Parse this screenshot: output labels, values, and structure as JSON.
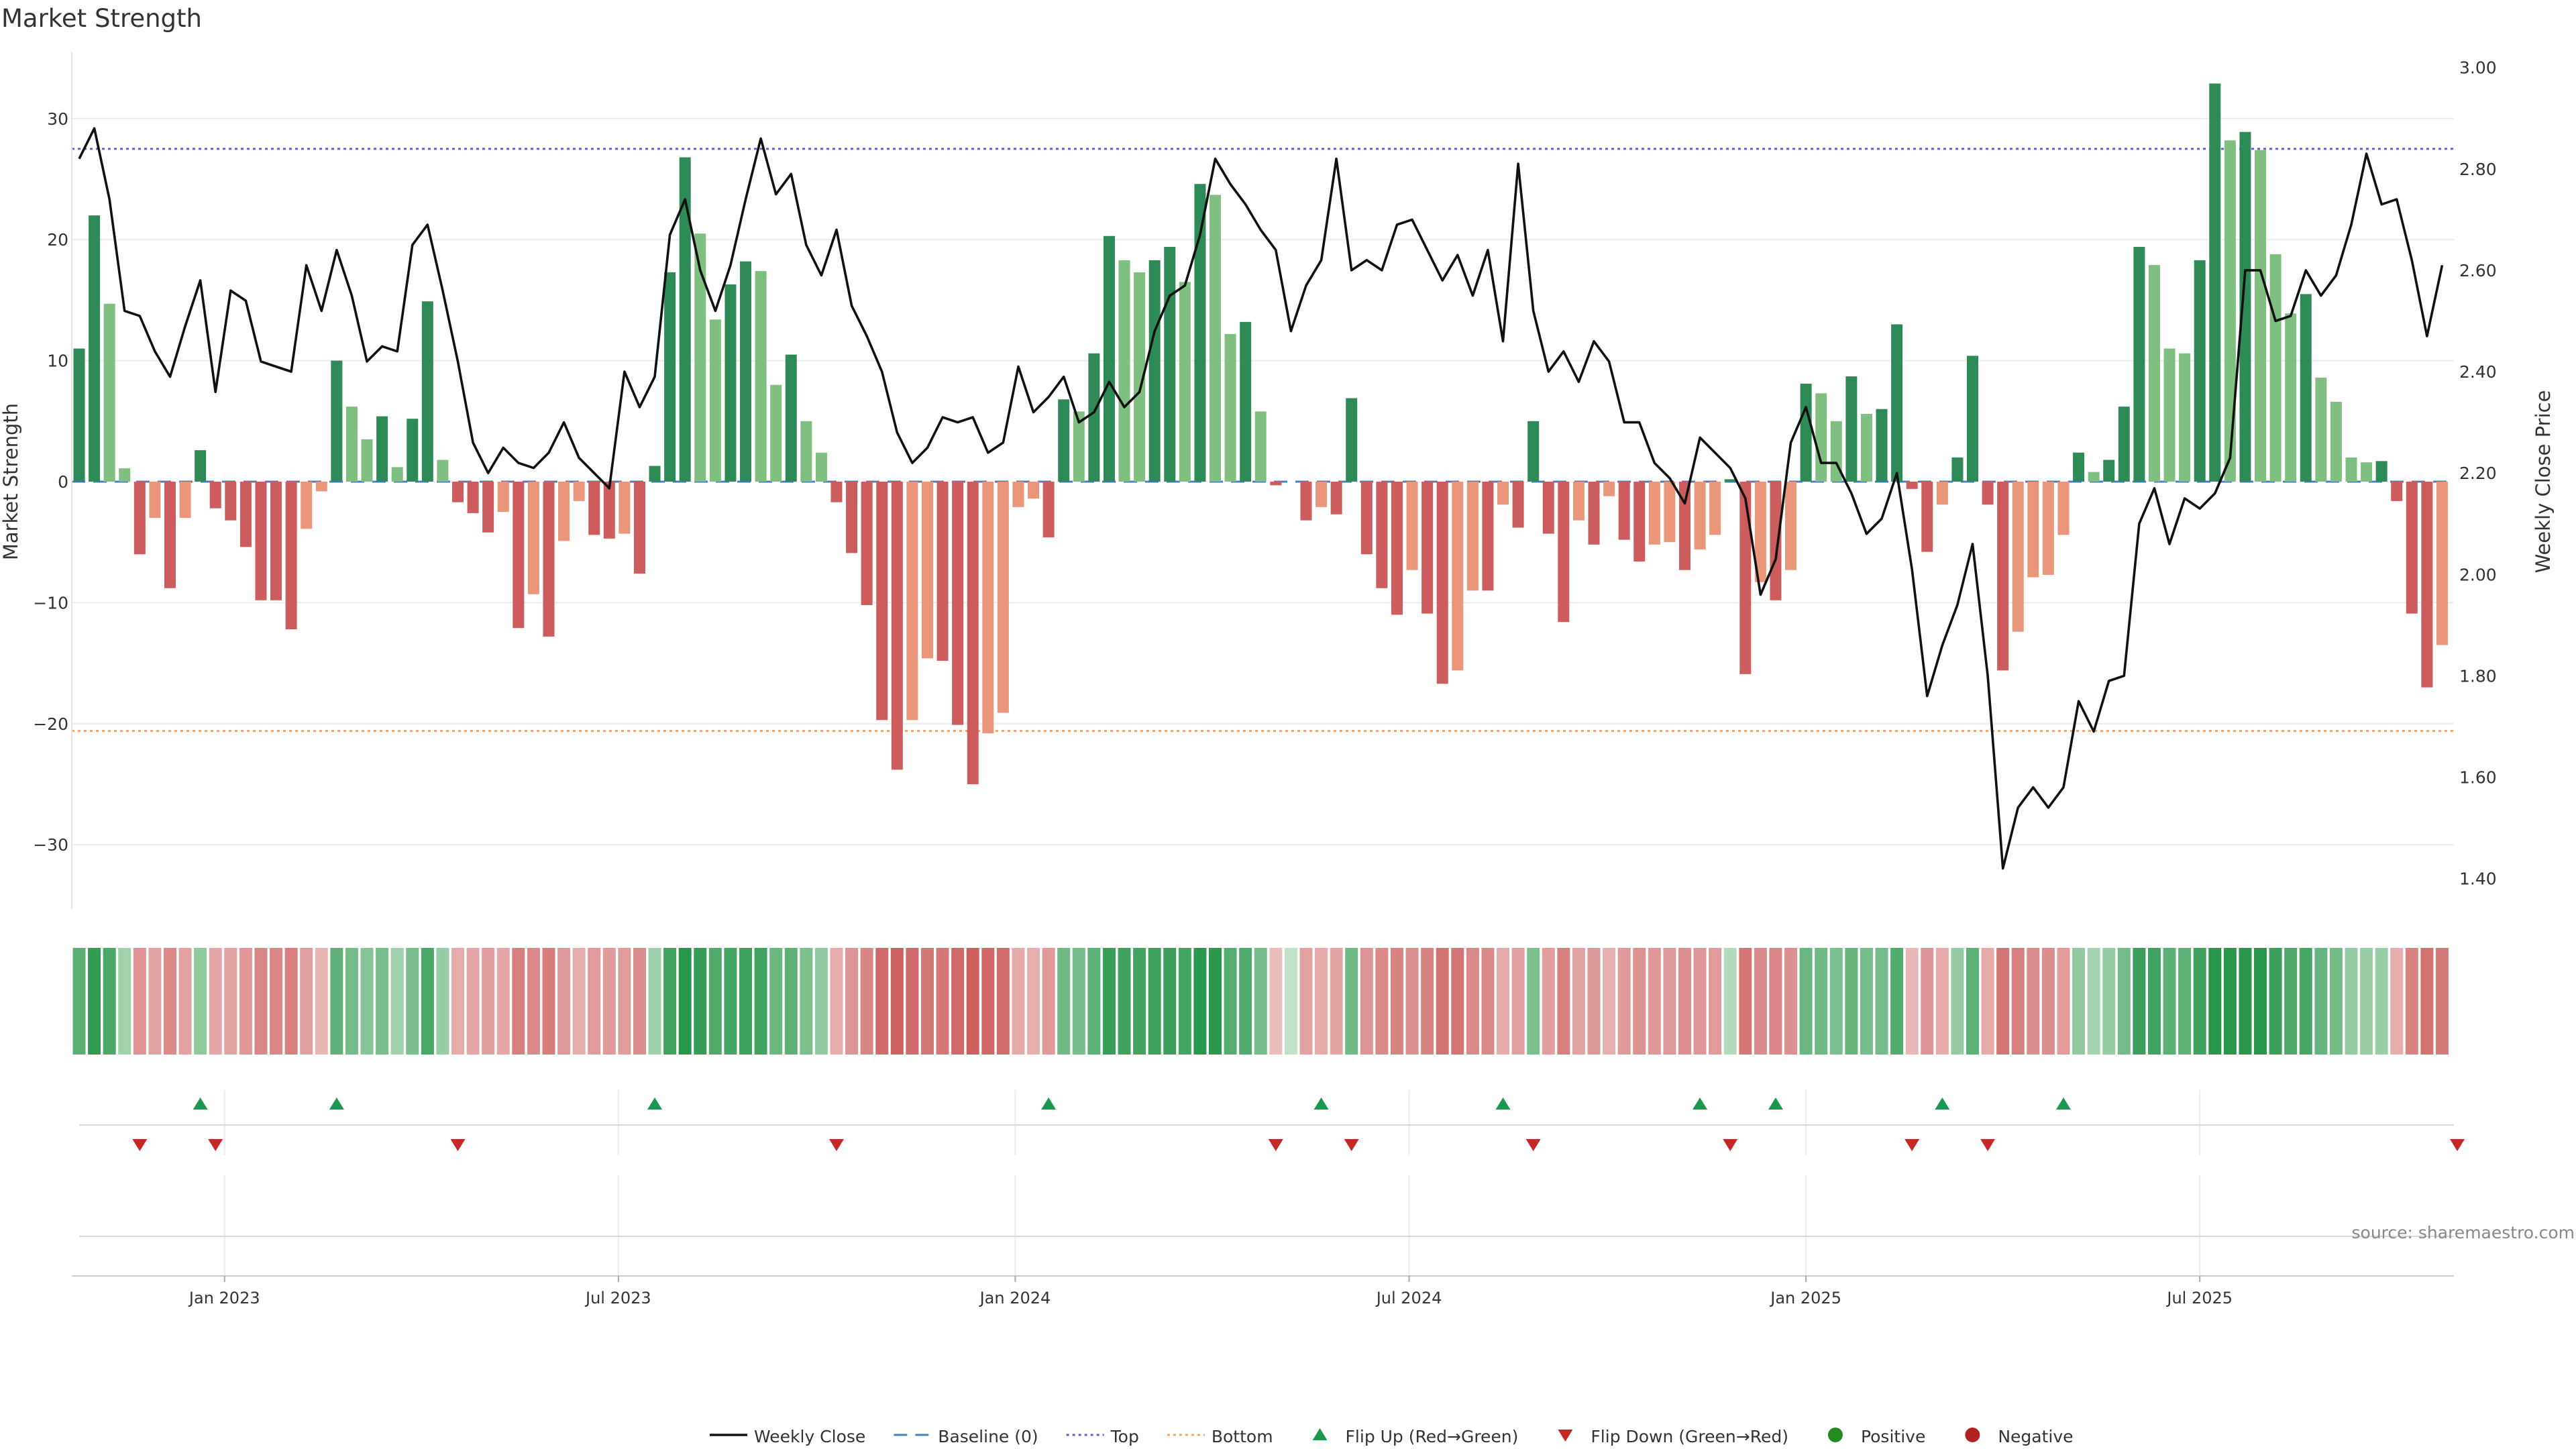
{
  "title": "Market Strength",
  "source": "source: sharemaestro.com",
  "colors": {
    "strong_pos": "#2e8b57",
    "weak_pos": "#7fbf7f",
    "strong_neg": "#cd5c5c",
    "weak_neg": "#e9967a",
    "line": "#111111",
    "top": "#6a5acd",
    "bottom": "#f4a460",
    "baseline": "#4682b4",
    "flip_up": "#1a9850",
    "flip_down": "#c62828"
  },
  "chart_data": {
    "type": "bar",
    "title": "Market Strength",
    "ylabel_left": "Market Strength",
    "ylabel_right": "Weekly Close Price",
    "ylim_left": [
      -35.5,
      35.5
    ],
    "ylim_right": [
      1.34,
      3.03
    ],
    "yticks_left": [
      "30",
      "20",
      "10",
      "0",
      "−10",
      "−20",
      "−30"
    ],
    "yticks_left_values": [
      30,
      20,
      10,
      0,
      -10,
      -20,
      -30
    ],
    "yticks_right": [
      "3.00",
      "2.80",
      "2.60",
      "2.40",
      "2.20",
      "2.00",
      "1.80",
      "1.60",
      "1.40"
    ],
    "yticks_right_values": [
      3.0,
      2.8,
      2.6,
      2.4,
      2.2,
      2.0,
      1.8,
      1.6,
      1.4
    ],
    "x_tick_labels": [
      "Jan 2023",
      "Jul 2023",
      "Jan 2024",
      "Jul 2024",
      "Jan 2025",
      "Jul 2025"
    ],
    "x_tick_weeks": [
      9.6,
      35.6,
      61.8,
      87.8,
      114,
      140
    ],
    "top_line": 27.5,
    "bottom_line": -20.6,
    "baseline": 0,
    "strength": [
      11,
      22,
      14.7,
      1.1,
      -6,
      -3,
      -8.8,
      -3,
      2.6,
      -2.2,
      -3.2,
      -5.4,
      -9.8,
      -9.8,
      -12.2,
      -3.9,
      -0.8,
      10,
      6.2,
      3.5,
      5.4,
      1.2,
      5.2,
      14.9,
      1.8,
      -1.7,
      -2.6,
      -4.2,
      -2.5,
      -12.1,
      -9.3,
      -12.8,
      -4.9,
      -1.6,
      -4.4,
      -4.7,
      -4.3,
      -7.6,
      1.3,
      17.3,
      26.8,
      20.5,
      13.4,
      16.3,
      18.2,
      17.4,
      8,
      10.5,
      5,
      2.4,
      -1.7,
      -5.9,
      -10.2,
      -19.7,
      -23.8,
      -19.7,
      -14.6,
      -14.8,
      -20.1,
      -25,
      -20.8,
      -19.1,
      -2.1,
      -1.4,
      -4.6,
      6.8,
      5.8,
      10.6,
      20.3,
      18.3,
      17.3,
      18.3,
      19.4,
      16.5,
      24.6,
      23.7,
      12.2,
      13.2,
      5.8,
      -0.3,
      0,
      -3.2,
      -2.1,
      -2.7,
      6.9,
      -6,
      -8.8,
      -11,
      -7.3,
      -10.9,
      -16.7,
      -15.6,
      -9,
      -9,
      -1.9,
      -3.8,
      5,
      -4.3,
      -11.6,
      -3.2,
      -5.2,
      -1.2,
      -4.8,
      -6.6,
      -5.2,
      -5,
      -7.3,
      -5.6,
      -4.4,
      0.2,
      -15.9,
      -8.3,
      -9.8,
      -7.3,
      8.1,
      7.3,
      5,
      8.7,
      5.6,
      6,
      13,
      -0.6,
      -5.8,
      -1.9,
      2,
      10.4,
      -1.9,
      -15.6,
      -12.4,
      -7.9,
      -7.7,
      -4.4,
      2.4,
      0.8,
      1.8,
      6.2,
      19.4,
      17.9,
      11,
      10.6,
      18.3,
      32.9,
      28.2,
      28.9,
      27.4,
      18.8,
      13.9,
      15.5,
      8.6,
      6.6,
      2,
      1.6,
      1.7,
      -1.6,
      -10.9,
      -17,
      -13.5
    ],
    "weekly_close": [
      2.82,
      2.88,
      2.74,
      2.52,
      2.51,
      2.44,
      2.39,
      2.49,
      2.58,
      2.36,
      2.56,
      2.54,
      2.42,
      2.41,
      2.4,
      2.61,
      2.52,
      2.64,
      2.55,
      2.42,
      2.45,
      2.44,
      2.65,
      2.69,
      2.56,
      2.42,
      2.26,
      2.2,
      2.25,
      2.22,
      2.21,
      2.24,
      2.3,
      2.23,
      2.2,
      2.17,
      2.4,
      2.33,
      2.39,
      2.67,
      2.74,
      2.6,
      2.52,
      2.61,
      2.74,
      2.86,
      2.75,
      2.79,
      2.65,
      2.59,
      2.68,
      2.53,
      2.47,
      2.4,
      2.28,
      2.22,
      2.25,
      2.31,
      2.3,
      2.31,
      2.24,
      2.26,
      2.41,
      2.32,
      2.35,
      2.39,
      2.3,
      2.32,
      2.38,
      2.33,
      2.36,
      2.48,
      2.55,
      2.57,
      2.67,
      2.82,
      2.77,
      2.73,
      2.68,
      2.64,
      2.48,
      2.57,
      2.62,
      2.82,
      2.6,
      2.62,
      2.6,
      2.69,
      2.7,
      2.64,
      2.58,
      2.63,
      2.55,
      2.64,
      2.46,
      2.81,
      2.52,
      2.4,
      2.44,
      2.38,
      2.46,
      2.42,
      2.3,
      2.3,
      2.22,
      2.19,
      2.14,
      2.27,
      2.24,
      2.21,
      2.15,
      1.96,
      2.03,
      2.26,
      2.33,
      2.22,
      2.22,
      2.16,
      2.08,
      2.11,
      2.2,
      2.01,
      1.76,
      1.86,
      1.94,
      2.06,
      1.8,
      1.42,
      1.54,
      1.58,
      1.54,
      1.58,
      1.75,
      1.69,
      1.79,
      1.8,
      2.1,
      2.17,
      2.06,
      2.15,
      2.13,
      2.16,
      2.23,
      2.6,
      2.6,
      2.5,
      2.51,
      2.6,
      2.55,
      2.59,
      2.69,
      2.83,
      2.73,
      2.74,
      2.62,
      2.47,
      2.61
    ],
    "flip_up_weeks": [
      8,
      17,
      38,
      64,
      82,
      94,
      107,
      112,
      123,
      131
    ],
    "flip_down_weeks": [
      4,
      9,
      25,
      50,
      79,
      84,
      96,
      109,
      121,
      126,
      157
    ],
    "legend": [
      {
        "label": "Weekly Close",
        "symbol": "line"
      },
      {
        "label": "Baseline (0)",
        "symbol": "dash"
      },
      {
        "label": "Top",
        "symbol": "dot-purple"
      },
      {
        "label": "Bottom",
        "symbol": "dot-orange"
      },
      {
        "label": "Flip Up (Red→Green)",
        "symbol": "tri-up"
      },
      {
        "label": "Flip Down (Green→Red)",
        "symbol": "tri-down"
      },
      {
        "label": "Positive",
        "symbol": "dot-green"
      },
      {
        "label": "Negative",
        "symbol": "dot-red"
      }
    ],
    "legend_position": "bottom-center"
  }
}
